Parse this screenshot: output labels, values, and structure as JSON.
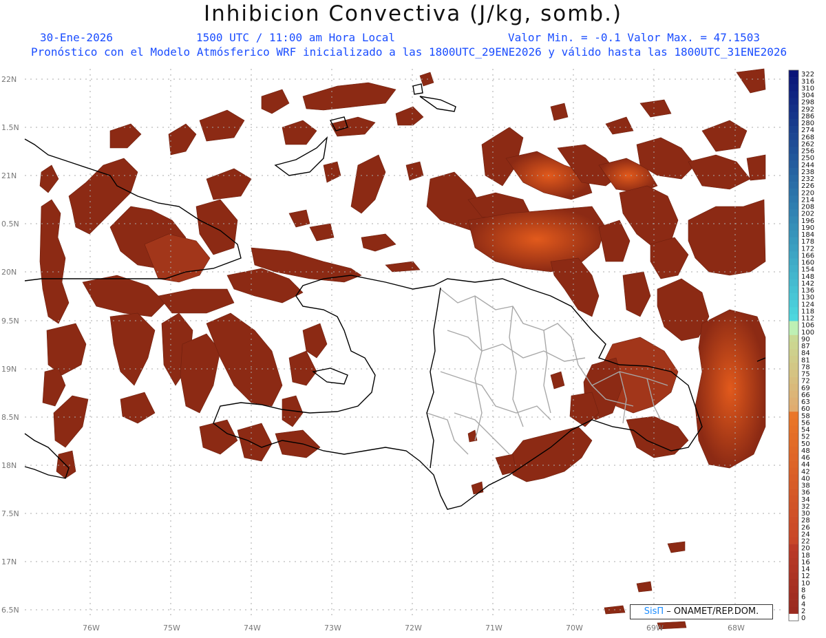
{
  "header": {
    "title": "Inhibicion Convectiva (J/kg, somb.)",
    "date": "30-Ene-2026",
    "time": "1500 UTC / 11:00 am Hora Local",
    "minmax": "Valor Min. = -0.1  Valor Max. = 47.1503",
    "forecast_info": "Pronóstico con el Modelo Atmósferico WRF inicializado a las 1800UTC_29ENE2026 y válido hasta las  1800UTC_31ENE2026"
  },
  "map": {
    "lat_labels": [
      "22N",
      "1.5N",
      "21N",
      "0.5N",
      "20N",
      "9.5N",
      "19N",
      "8.5N",
      "18N",
      "7.5N",
      "17N",
      "6.5N"
    ],
    "lon_labels": [
      "76W",
      "75W",
      "74W",
      "73W",
      "72W",
      "71W",
      "70W",
      "69W",
      "68W"
    ],
    "shading_color": "#8c2a14",
    "shading_highlight": "#d8551e",
    "coast_color": "#000000",
    "province_color": "#a8a8a8",
    "grid_color": "#aaaaaa"
  },
  "colorbar": {
    "labels": [
      "322",
      "316",
      "310",
      "304",
      "298",
      "292",
      "286",
      "280",
      "274",
      "268",
      "262",
      "256",
      "250",
      "244",
      "238",
      "232",
      "226",
      "220",
      "214",
      "208",
      "202",
      "196",
      "190",
      "184",
      "178",
      "172",
      "166",
      "160",
      "154",
      "148",
      "142",
      "136",
      "130",
      "124",
      "118",
      "112",
      "106",
      "100",
      "90",
      "87",
      "84",
      "81",
      "78",
      "75",
      "72",
      "69",
      "66",
      "63",
      "60",
      "58",
      "56",
      "54",
      "52",
      "50",
      "48",
      "46",
      "44",
      "42",
      "40",
      "38",
      "36",
      "34",
      "32",
      "30",
      "28",
      "26",
      "24",
      "22",
      "20",
      "18",
      "16",
      "14",
      "12",
      "10",
      "8",
      "6",
      "4",
      "2",
      "0"
    ]
  },
  "credit": {
    "brand": "SisΠ",
    "org": "– ONAMET/REP.DOM."
  }
}
